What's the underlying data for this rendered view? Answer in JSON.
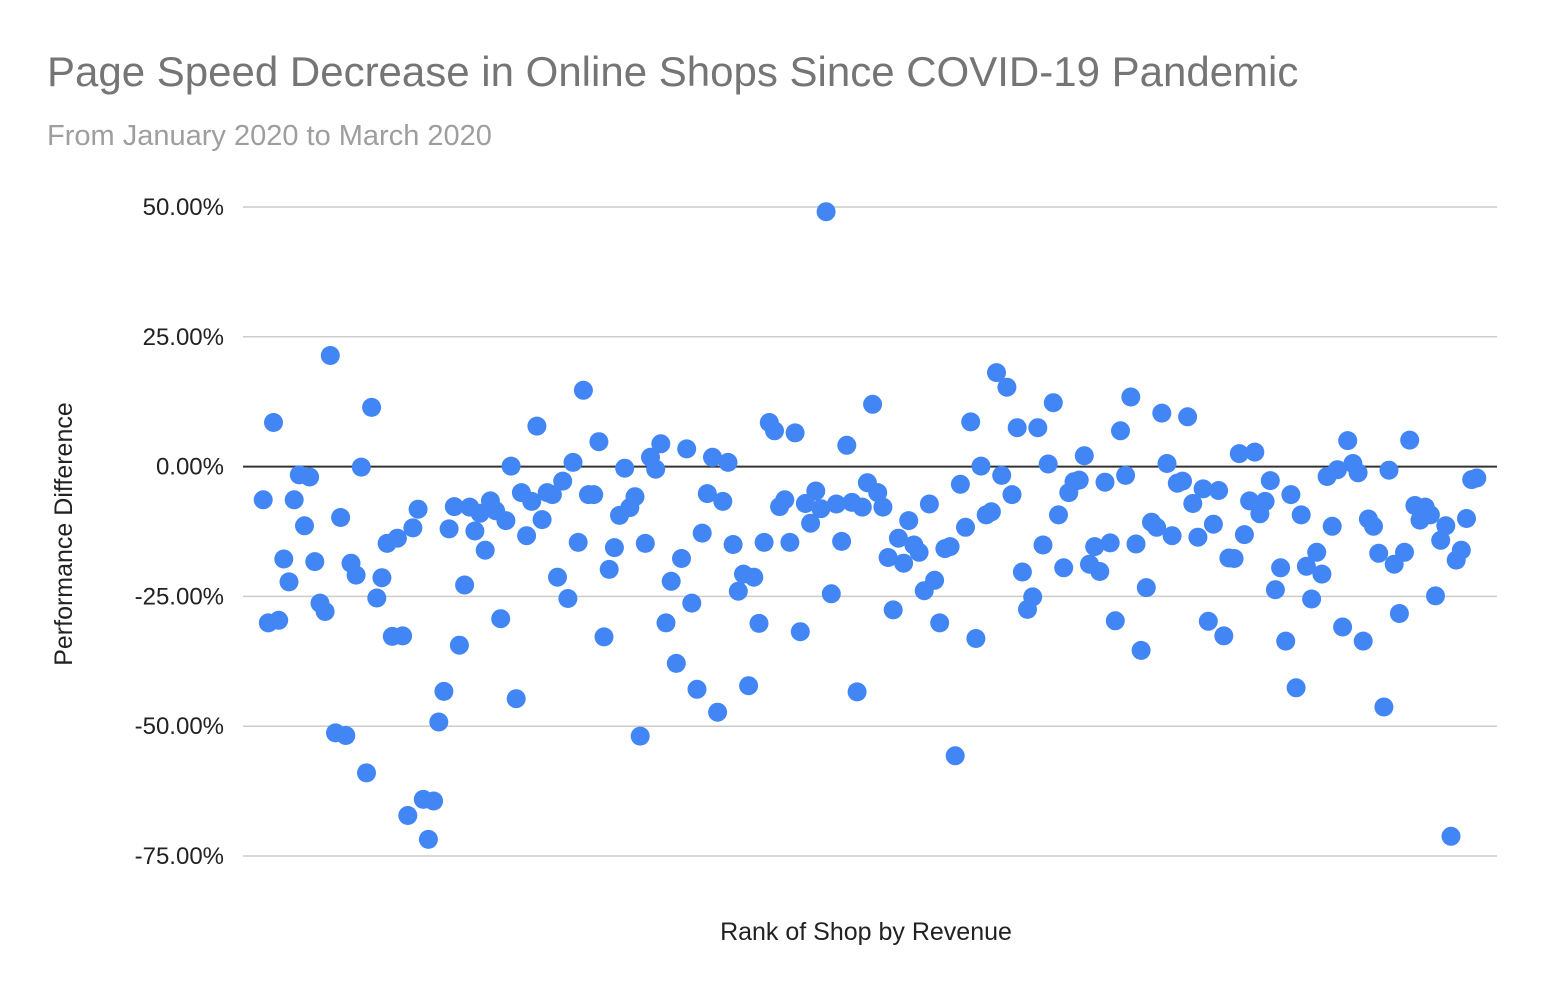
{
  "chart_data": {
    "type": "scatter",
    "title": "Page Speed Decrease in Online Shops Since COVID-19 Pandemic",
    "subtitle": "From January 2020 to March 2020",
    "xlabel": "Rank of Shop by Revenue",
    "ylabel": "Performance Difference",
    "ylim": [
      -0.75,
      0.5
    ],
    "xlim": [
      0,
      237
    ],
    "yticks": [
      {
        "value": 0.5,
        "label": "50.00%"
      },
      {
        "value": 0.25,
        "label": "25.00%"
      },
      {
        "value": 0,
        "label": "0.00%"
      },
      {
        "value": -0.25,
        "label": "-25.00%"
      },
      {
        "value": -0.5,
        "label": "-50.00%"
      },
      {
        "value": -0.75,
        "label": "-75.00%"
      }
    ],
    "grid": true,
    "legend": "none",
    "colors": {
      "point": "#4285f4",
      "grid": "#cccccc",
      "zero_line": "#333333"
    },
    "series": [
      {
        "name": "Performance Difference",
        "points": [
          [
            1,
            -0.064
          ],
          [
            2,
            -0.301
          ],
          [
            3,
            0.085
          ],
          [
            4,
            -0.296
          ],
          [
            5,
            -0.178
          ],
          [
            6,
            -0.222
          ],
          [
            7,
            -0.064
          ],
          [
            8,
            -0.016
          ],
          [
            9,
            -0.114
          ],
          [
            10,
            -0.02
          ],
          [
            11,
            -0.183
          ],
          [
            12,
            -0.263
          ],
          [
            13,
            -0.279
          ],
          [
            14,
            0.214
          ],
          [
            15,
            -0.513
          ],
          [
            16,
            -0.098
          ],
          [
            17,
            -0.518
          ],
          [
            18,
            -0.186
          ],
          [
            19,
            -0.209
          ],
          [
            20,
            -0.001
          ],
          [
            21,
            -0.59
          ],
          [
            22,
            0.114
          ],
          [
            23,
            -0.253
          ],
          [
            24,
            -0.214
          ],
          [
            25,
            -0.148
          ],
          [
            26,
            -0.327
          ],
          [
            27,
            -0.138
          ],
          [
            28,
            -0.326
          ],
          [
            29,
            -0.672
          ],
          [
            30,
            -0.118
          ],
          [
            31,
            -0.082
          ],
          [
            32,
            -0.641
          ],
          [
            33,
            -0.718
          ],
          [
            34,
            -0.644
          ],
          [
            35,
            -0.492
          ],
          [
            36,
            -0.433
          ],
          [
            37,
            -0.12
          ],
          [
            38,
            -0.077
          ],
          [
            39,
            -0.344
          ],
          [
            40,
            -0.228
          ],
          [
            41,
            -0.078
          ],
          [
            42,
            -0.124
          ],
          [
            43,
            -0.09
          ],
          [
            44,
            -0.161
          ],
          [
            45,
            -0.066
          ],
          [
            46,
            -0.085
          ],
          [
            47,
            -0.293
          ],
          [
            48,
            -0.104
          ],
          [
            49,
            0.001
          ],
          [
            50,
            -0.447
          ],
          [
            51,
            -0.05
          ],
          [
            52,
            -0.133
          ],
          [
            53,
            -0.067
          ],
          [
            54,
            0.078
          ],
          [
            55,
            -0.102
          ],
          [
            56,
            -0.05
          ],
          [
            57,
            -0.054
          ],
          [
            58,
            -0.213
          ],
          [
            59,
            -0.028
          ],
          [
            60,
            -0.254
          ],
          [
            61,
            0.008
          ],
          [
            62,
            -0.146
          ],
          [
            63,
            0.147
          ],
          [
            64,
            -0.054
          ],
          [
            65,
            -0.054
          ],
          [
            66,
            0.048
          ],
          [
            67,
            -0.328
          ],
          [
            68,
            -0.198
          ],
          [
            69,
            -0.156
          ],
          [
            70,
            -0.094
          ],
          [
            71,
            -0.003
          ],
          [
            72,
            -0.079
          ],
          [
            73,
            -0.058
          ],
          [
            74,
            -0.519
          ],
          [
            75,
            -0.148
          ],
          [
            76,
            0.018
          ],
          [
            77,
            -0.005
          ],
          [
            78,
            0.044
          ],
          [
            79,
            -0.301
          ],
          [
            80,
            -0.221
          ],
          [
            81,
            -0.379
          ],
          [
            82,
            -0.177
          ],
          [
            83,
            0.034
          ],
          [
            84,
            -0.263
          ],
          [
            85,
            -0.429
          ],
          [
            86,
            -0.128
          ],
          [
            87,
            -0.052
          ],
          [
            88,
            0.018
          ],
          [
            89,
            -0.473
          ],
          [
            90,
            -0.067
          ],
          [
            91,
            0.008
          ],
          [
            92,
            -0.15
          ],
          [
            93,
            -0.24
          ],
          [
            94,
            -0.207
          ],
          [
            95,
            -0.422
          ],
          [
            96,
            -0.213
          ],
          [
            97,
            -0.302
          ],
          [
            98,
            -0.146
          ],
          [
            99,
            0.085
          ],
          [
            100,
            0.069
          ],
          [
            101,
            -0.077
          ],
          [
            102,
            -0.064
          ],
          [
            103,
            -0.146
          ],
          [
            104,
            0.065
          ],
          [
            105,
            -0.318
          ],
          [
            106,
            -0.071
          ],
          [
            107,
            -0.109
          ],
          [
            108,
            -0.047
          ],
          [
            109,
            -0.081
          ],
          [
            110,
            0.491
          ],
          [
            111,
            -0.245
          ],
          [
            112,
            -0.072
          ],
          [
            113,
            -0.144
          ],
          [
            114,
            0.041
          ],
          [
            115,
            -0.069
          ],
          [
            116,
            -0.434
          ],
          [
            117,
            -0.078
          ],
          [
            118,
            -0.031
          ],
          [
            119,
            0.12
          ],
          [
            120,
            -0.05
          ],
          [
            121,
            -0.078
          ],
          [
            122,
            -0.175
          ],
          [
            123,
            -0.276
          ],
          [
            124,
            -0.138
          ],
          [
            125,
            -0.186
          ],
          [
            126,
            -0.104
          ],
          [
            127,
            -0.151
          ],
          [
            128,
            -0.165
          ],
          [
            129,
            -0.239
          ],
          [
            130,
            -0.072
          ],
          [
            131,
            -0.219
          ],
          [
            132,
            -0.301
          ],
          [
            133,
            -0.158
          ],
          [
            134,
            -0.154
          ],
          [
            135,
            -0.557
          ],
          [
            136,
            -0.034
          ],
          [
            137,
            -0.117
          ],
          [
            138,
            0.086
          ],
          [
            139,
            -0.331
          ],
          [
            140,
            0.001
          ],
          [
            141,
            -0.093
          ],
          [
            142,
            -0.087
          ],
          [
            143,
            0.181
          ],
          [
            144,
            -0.017
          ],
          [
            145,
            0.153
          ],
          [
            146,
            -0.054
          ],
          [
            147,
            0.075
          ],
          [
            148,
            -0.203
          ],
          [
            149,
            -0.275
          ],
          [
            150,
            -0.251
          ],
          [
            151,
            0.075
          ],
          [
            152,
            -0.151
          ],
          [
            153,
            0.005
          ],
          [
            154,
            0.123
          ],
          [
            155,
            -0.093
          ],
          [
            156,
            -0.195
          ],
          [
            157,
            -0.05
          ],
          [
            158,
            -0.029
          ],
          [
            159,
            -0.026
          ],
          [
            160,
            0.021
          ],
          [
            161,
            -0.188
          ],
          [
            162,
            -0.154
          ],
          [
            163,
            -0.202
          ],
          [
            164,
            -0.03
          ],
          [
            165,
            -0.147
          ],
          [
            166,
            -0.297
          ],
          [
            167,
            0.069
          ],
          [
            168,
            -0.017
          ],
          [
            169,
            0.134
          ],
          [
            170,
            -0.149
          ],
          [
            171,
            -0.354
          ],
          [
            172,
            -0.233
          ],
          [
            173,
            -0.107
          ],
          [
            174,
            -0.117
          ],
          [
            175,
            0.103
          ],
          [
            176,
            0.006
          ],
          [
            177,
            -0.133
          ],
          [
            178,
            -0.032
          ],
          [
            179,
            -0.028
          ],
          [
            180,
            0.096
          ],
          [
            181,
            -0.071
          ],
          [
            182,
            -0.136
          ],
          [
            183,
            -0.043
          ],
          [
            184,
            -0.298
          ],
          [
            185,
            -0.111
          ],
          [
            186,
            -0.046
          ],
          [
            187,
            -0.326
          ],
          [
            188,
            -0.176
          ],
          [
            189,
            -0.177
          ],
          [
            190,
            0.025
          ],
          [
            191,
            -0.131
          ],
          [
            192,
            -0.066
          ],
          [
            193,
            0.028
          ],
          [
            194,
            -0.091
          ],
          [
            195,
            -0.067
          ],
          [
            196,
            -0.027
          ],
          [
            197,
            -0.237
          ],
          [
            198,
            -0.195
          ],
          [
            199,
            -0.336
          ],
          [
            200,
            -0.054
          ],
          [
            201,
            -0.426
          ],
          [
            202,
            -0.093
          ],
          [
            203,
            -0.192
          ],
          [
            204,
            -0.255
          ],
          [
            205,
            -0.165
          ],
          [
            206,
            -0.207
          ],
          [
            207,
            -0.019
          ],
          [
            208,
            -0.115
          ],
          [
            209,
            -0.006
          ],
          [
            210,
            -0.309
          ],
          [
            211,
            0.05
          ],
          [
            212,
            0.006
          ],
          [
            213,
            -0.012
          ],
          [
            214,
            -0.336
          ],
          [
            215,
            -0.101
          ],
          [
            216,
            -0.115
          ],
          [
            217,
            -0.167
          ],
          [
            218,
            -0.463
          ],
          [
            219,
            -0.007
          ],
          [
            220,
            -0.188
          ],
          [
            221,
            -0.283
          ],
          [
            222,
            -0.165
          ],
          [
            223,
            0.051
          ],
          [
            224,
            -0.075
          ],
          [
            225,
            -0.103
          ],
          [
            226,
            -0.078
          ],
          [
            227,
            -0.093
          ],
          [
            228,
            -0.249
          ],
          [
            229,
            -0.142
          ],
          [
            230,
            -0.114
          ],
          [
            231,
            -0.712
          ],
          [
            232,
            -0.18
          ],
          [
            233,
            -0.161
          ],
          [
            234,
            -0.1
          ],
          [
            235,
            -0.025
          ],
          [
            236,
            -0.022
          ]
        ]
      }
    ]
  }
}
